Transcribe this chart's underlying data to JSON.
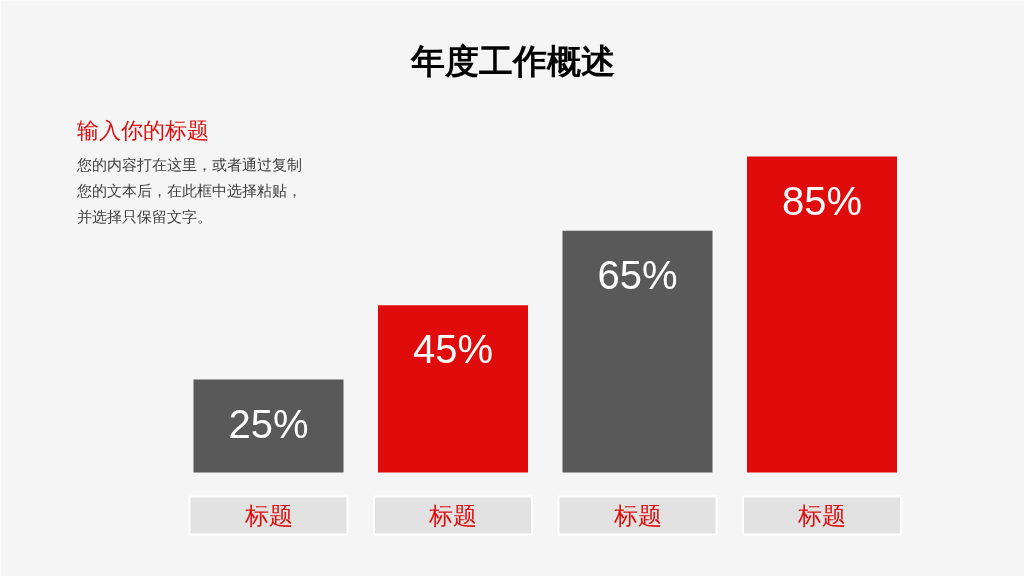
{
  "chart_data": {
    "type": "bar",
    "title": "年度工作概述",
    "subtitle": "输入你的标题",
    "annotations": [
      "您的内容打在这里，或者通过复制您的文本后，在此框中选择粘贴，并选择只保留文字。"
    ],
    "categories": [
      "标题",
      "标题",
      "标题",
      "标题"
    ],
    "values": [
      25,
      45,
      65,
      85
    ],
    "colors": [
      "#595959",
      "#e00c0c",
      "#595959",
      "#e00c0c"
    ],
    "value_labels": [
      "25%",
      "45%",
      "65%",
      "85%"
    ]
  }
}
